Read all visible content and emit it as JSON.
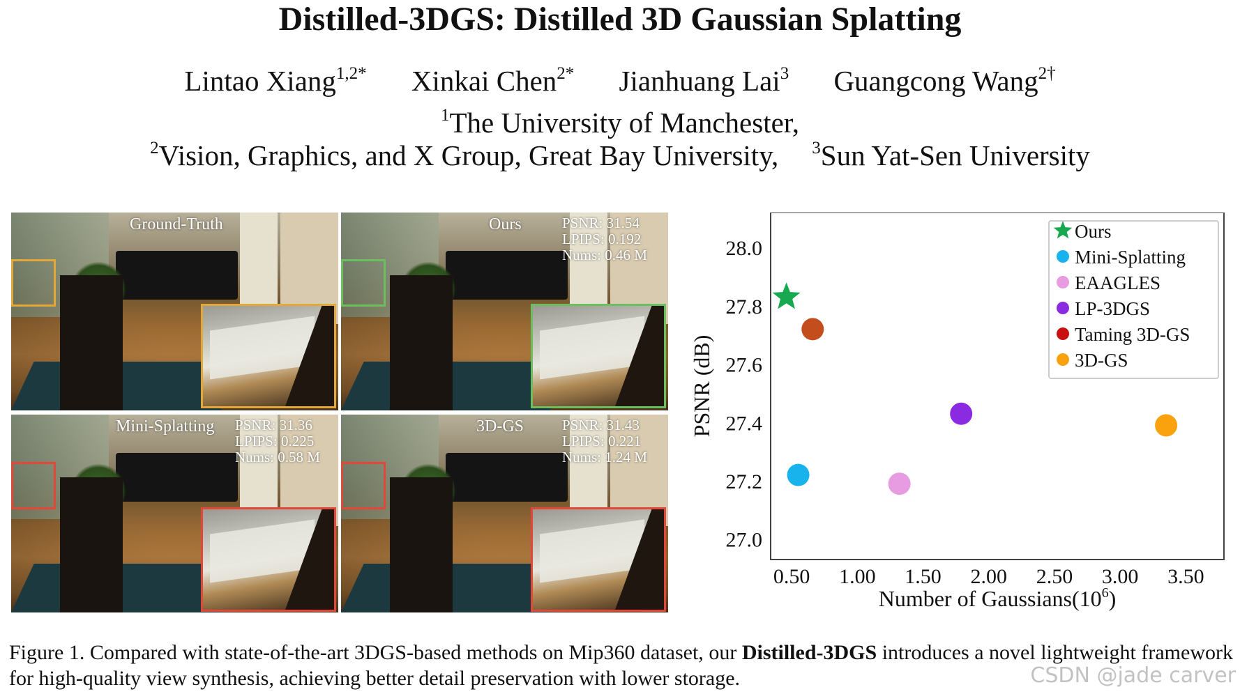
{
  "title": "Distilled-3DGS: Distilled 3D Gaussian Splatting",
  "authors": [
    {
      "name": "Lintao Xiang",
      "sup": "1,2*"
    },
    {
      "name": "Xinkai Chen",
      "sup": "2*"
    },
    {
      "name": "Jianhuang Lai",
      "sup": "3"
    },
    {
      "name": "Guangcong Wang",
      "sup": "2†"
    }
  ],
  "affiliations": {
    "aff1_sup": "1",
    "aff1": "The University of Manchester,",
    "aff2_sup": "2",
    "aff2": "Vision, Graphics, and X Group, Great Bay University,",
    "aff3_sup": "3",
    "aff3": "Sun Yat-Sen University"
  },
  "panels": [
    {
      "label": "Ground-Truth",
      "psnr": "",
      "lpips": "",
      "nums": "",
      "box_color": "#e3a83a"
    },
    {
      "label": "Ours",
      "psnr": "PSNR: 31.54",
      "lpips": "LPIPS: 0.192",
      "nums": "Nums: 0.46 M",
      "box_color": "#6cbf5f"
    },
    {
      "label": "Mini-Splatting",
      "psnr": "PSNR: 31.36",
      "lpips": "LPIPS: 0.225",
      "nums": "Nums: 0.58 M",
      "box_color": "#e0483a"
    },
    {
      "label": "3D-GS",
      "psnr": "PSNR: 31.43",
      "lpips": "LPIPS: 0.221",
      "nums": "Nums: 1.24 M",
      "box_color": "#e0483a"
    }
  ],
  "chart_data": {
    "type": "scatter",
    "xlabel": "Number of Gaussians(10",
    "xlabel_sup": "6",
    "xlabel_close": ")",
    "ylabel": "PSNR (dB)",
    "xlim": [
      0.34,
      3.79
    ],
    "ylim": [
      26.93,
      28.12
    ],
    "xticks": [
      0.5,
      1.0,
      1.5,
      2.0,
      2.5,
      3.0,
      3.5
    ],
    "xtick_labels": [
      "0.50",
      "1.00",
      "1.50",
      "2.00",
      "2.50",
      "3.00",
      "3.50"
    ],
    "yticks": [
      27.0,
      27.2,
      27.4,
      27.6,
      27.8,
      28.0
    ],
    "ytick_labels": [
      "27.0",
      "27.2",
      "27.4",
      "27.6",
      "27.8",
      "28.0"
    ],
    "grid": false,
    "legend_position": "top-right",
    "series": [
      {
        "name": "Ours",
        "x": 0.46,
        "y": 27.83,
        "color": "#17a94f",
        "marker": "star"
      },
      {
        "name": "Mini-Splatting",
        "x": 0.55,
        "y": 27.22,
        "color": "#18b2ec",
        "marker": "circle"
      },
      {
        "name": "EAAGLES",
        "x": 1.32,
        "y": 27.19,
        "color": "#e79be0",
        "marker": "circle"
      },
      {
        "name": "LP-3DGS",
        "x": 1.79,
        "y": 27.43,
        "color": "#8a2be2",
        "marker": "circle"
      },
      {
        "name": "Taming 3D-GS",
        "x": 0.66,
        "y": 27.72,
        "color": "#c44d1e",
        "legend_color": "#c81010",
        "marker": "circle"
      },
      {
        "name": "3D-GS",
        "x": 3.35,
        "y": 27.39,
        "color": "#f9a20e",
        "marker": "circle"
      }
    ]
  },
  "caption": {
    "prefix": "Figure 1.  Compared with state-of-the-art 3DGS-based methods on Mip360 dataset, our ",
    "bold": "Distilled-3DGS",
    "suffix": " introduces a novel lightweight framework for high-quality view synthesis, achieving better detail preservation with lower storage."
  },
  "watermark": "CSDN @jade carver"
}
